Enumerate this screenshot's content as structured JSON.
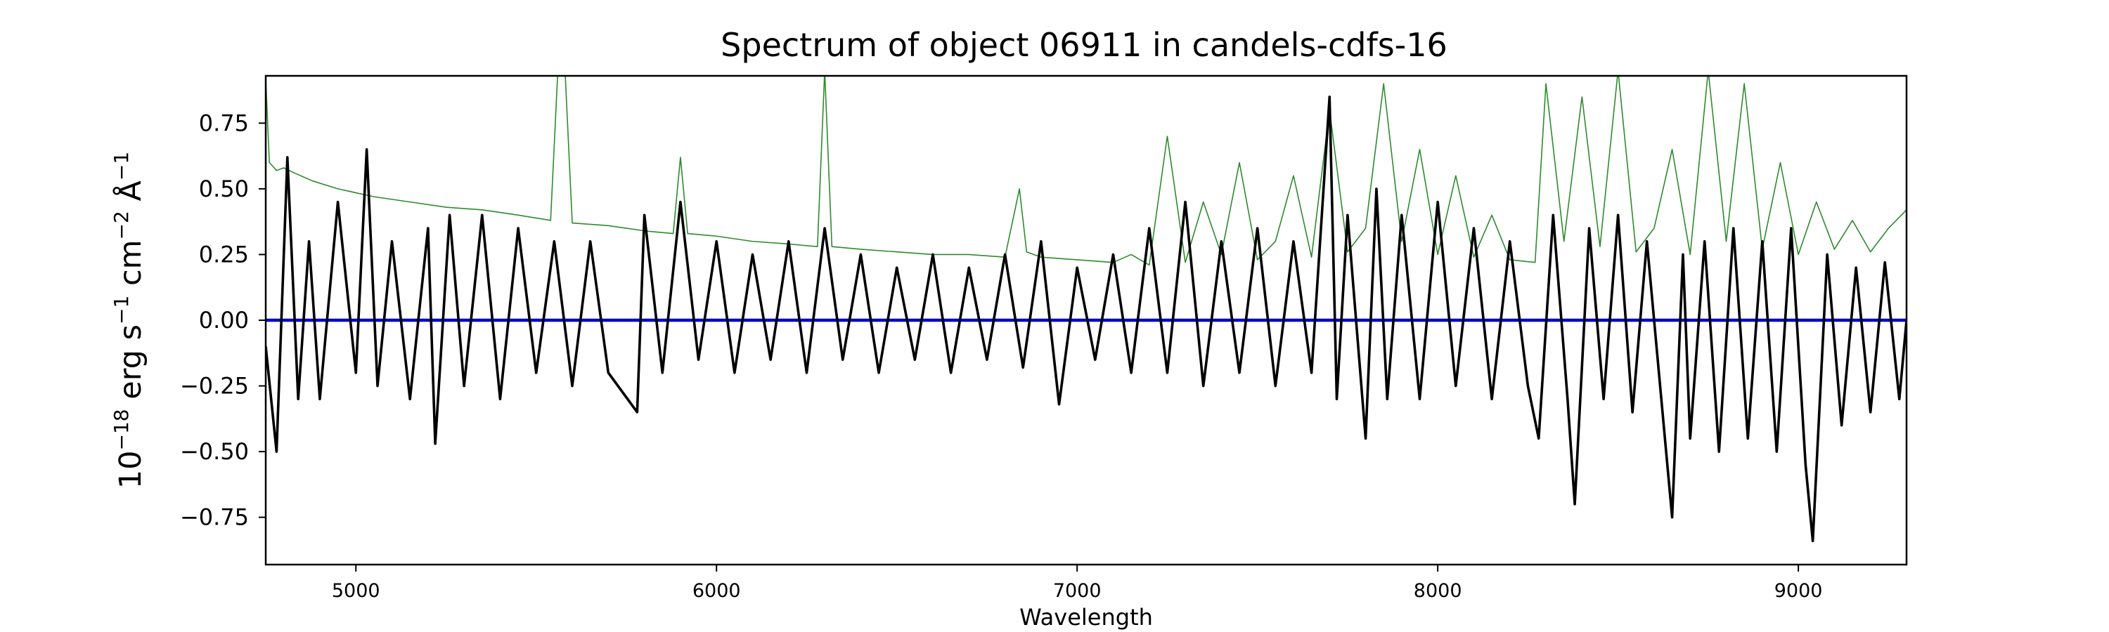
{
  "chart_data": {
    "type": "line",
    "title": "Spectrum of object 06911 in candels-cdfs-16",
    "xlabel": "Wavelength",
    "ylabel": {
      "base": "10",
      "exp1": "−18",
      "unit1": " erg s",
      "exp2": "−1",
      "unit2": " cm",
      "exp3": "−2",
      "unit3": " Å",
      "exp4": "−1"
    },
    "xlim": [
      4750,
      9300
    ],
    "ylim": [
      -0.93,
      0.93
    ],
    "xticks": [
      5000,
      6000,
      7000,
      8000,
      9000
    ],
    "xtick_labels": [
      "5000",
      "6000",
      "7000",
      "8000",
      "9000"
    ],
    "yticks": [
      -0.75,
      -0.5,
      -0.25,
      0.0,
      0.25,
      0.5,
      0.75
    ],
    "ytick_labels": [
      "−0.75",
      "−0.50",
      "−0.25",
      "0.00",
      "0.25",
      "0.50",
      "0.75"
    ],
    "grid": false,
    "series": [
      {
        "role": "error",
        "color": "#2e8b2e",
        "x": [
          4750,
          4760,
          4780,
          4800,
          4830,
          4880,
          4950,
          5050,
          5150,
          5250,
          5350,
          5450,
          5540,
          5560,
          5580,
          5600,
          5700,
          5800,
          5880,
          5900,
          5920,
          6000,
          6100,
          6200,
          6280,
          6300,
          6320,
          6400,
          6500,
          6600,
          6700,
          6800,
          6840,
          6860,
          6900,
          7000,
          7100,
          7150,
          7200,
          7250,
          7300,
          7350,
          7400,
          7450,
          7500,
          7550,
          7600,
          7650,
          7700,
          7750,
          7800,
          7850,
          7900,
          7950,
          8000,
          8050,
          8100,
          8150,
          8200,
          8270,
          8300,
          8350,
          8400,
          8450,
          8500,
          8550,
          8600,
          8650,
          8700,
          8750,
          8800,
          8850,
          8900,
          8950,
          9000,
          9050,
          9100,
          9150,
          9200,
          9250,
          9300
        ],
        "y": [
          0.92,
          0.6,
          0.57,
          0.58,
          0.56,
          0.53,
          0.5,
          0.47,
          0.45,
          0.43,
          0.42,
          0.4,
          0.38,
          0.95,
          0.95,
          0.37,
          0.36,
          0.34,
          0.33,
          0.62,
          0.33,
          0.32,
          0.3,
          0.29,
          0.28,
          0.95,
          0.28,
          0.27,
          0.26,
          0.25,
          0.25,
          0.24,
          0.5,
          0.26,
          0.24,
          0.23,
          0.22,
          0.25,
          0.21,
          0.7,
          0.22,
          0.45,
          0.25,
          0.6,
          0.23,
          0.3,
          0.55,
          0.24,
          0.8,
          0.26,
          0.35,
          0.9,
          0.3,
          0.65,
          0.25,
          0.55,
          0.24,
          0.4,
          0.23,
          0.22,
          0.9,
          0.3,
          0.85,
          0.28,
          0.95,
          0.26,
          0.35,
          0.65,
          0.25,
          0.95,
          0.3,
          0.9,
          0.27,
          0.6,
          0.25,
          0.45,
          0.27,
          0.38,
          0.26,
          0.35,
          0.42
        ]
      },
      {
        "role": "flux",
        "color": "#000000",
        "x": [
          4750,
          4780,
          4810,
          4840,
          4870,
          4900,
          4950,
          5000,
          5030,
          5060,
          5100,
          5150,
          5200,
          5220,
          5260,
          5300,
          5350,
          5400,
          5450,
          5500,
          5550,
          5600,
          5650,
          5700,
          5780,
          5800,
          5850,
          5900,
          5950,
          6000,
          6050,
          6100,
          6150,
          6200,
          6250,
          6300,
          6350,
          6400,
          6450,
          6500,
          6550,
          6600,
          6650,
          6700,
          6750,
          6800,
          6850,
          6900,
          6950,
          7000,
          7050,
          7100,
          7150,
          7200,
          7250,
          7300,
          7350,
          7400,
          7450,
          7500,
          7550,
          7600,
          7650,
          7700,
          7720,
          7750,
          7800,
          7830,
          7860,
          7900,
          7950,
          8000,
          8050,
          8100,
          8150,
          8200,
          8250,
          8280,
          8320,
          8360,
          8380,
          8420,
          8460,
          8500,
          8540,
          8580,
          8620,
          8650,
          8680,
          8700,
          8740,
          8780,
          8820,
          8860,
          8900,
          8940,
          8980,
          9020,
          9040,
          9080,
          9120,
          9160,
          9200,
          9240,
          9280,
          9300
        ],
        "y": [
          -0.1,
          -0.5,
          0.62,
          -0.3,
          0.3,
          -0.3,
          0.45,
          -0.2,
          0.65,
          -0.25,
          0.3,
          -0.3,
          0.35,
          -0.47,
          0.4,
          -0.25,
          0.4,
          -0.3,
          0.35,
          -0.2,
          0.3,
          -0.25,
          0.3,
          -0.2,
          -0.35,
          0.4,
          -0.2,
          0.45,
          -0.15,
          0.3,
          -0.2,
          0.25,
          -0.15,
          0.3,
          -0.2,
          0.35,
          -0.15,
          0.25,
          -0.2,
          0.2,
          -0.15,
          0.25,
          -0.2,
          0.2,
          -0.15,
          0.25,
          -0.18,
          0.3,
          -0.32,
          0.2,
          -0.15,
          0.25,
          -0.2,
          0.35,
          -0.2,
          0.45,
          -0.25,
          0.3,
          -0.2,
          0.35,
          -0.25,
          0.3,
          -0.2,
          0.85,
          -0.3,
          0.4,
          -0.45,
          0.5,
          -0.3,
          0.4,
          -0.3,
          0.45,
          -0.25,
          0.35,
          -0.3,
          0.3,
          -0.25,
          -0.45,
          0.4,
          -0.3,
          -0.7,
          0.35,
          -0.3,
          0.4,
          -0.35,
          0.3,
          -0.3,
          -0.75,
          0.25,
          -0.45,
          0.3,
          -0.5,
          0.35,
          -0.45,
          0.3,
          -0.5,
          0.35,
          -0.55,
          -0.84,
          0.25,
          -0.4,
          0.2,
          -0.35,
          0.22,
          -0.3,
          0.0
        ]
      },
      {
        "role": "zero",
        "color": "#0000cc",
        "x": [
          4750,
          9300
        ],
        "y": [
          0.0,
          0.0
        ]
      }
    ]
  }
}
